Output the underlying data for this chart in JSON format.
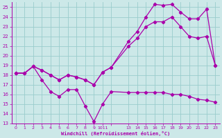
{
  "xlabel": "Windchill (Refroidissement éolien,°C)",
  "bg_color": "#cce8e8",
  "grid_color": "#99cccc",
  "line_color": "#aa00aa",
  "xlim": [
    -0.5,
    23.5
  ],
  "ylim": [
    13,
    25.5
  ],
  "yticks": [
    13,
    14,
    15,
    16,
    17,
    18,
    19,
    20,
    21,
    22,
    23,
    24,
    25
  ],
  "xtick_positions": [
    0,
    1,
    2,
    3,
    4,
    5,
    6,
    7,
    8,
    9,
    10,
    11,
    13,
    14,
    15,
    16,
    17,
    18,
    19,
    20,
    21,
    22,
    23
  ],
  "xtick_labels": [
    "0",
    "1",
    "2",
    "3",
    "4",
    "5",
    "6",
    "7",
    "8",
    "9",
    "1011",
    "",
    "13",
    "14",
    "15",
    "16",
    "17",
    "18",
    "19",
    "20",
    "21",
    "22",
    "23"
  ],
  "line1_x": [
    0,
    1,
    2,
    3,
    4,
    5,
    6,
    7,
    8,
    9,
    10,
    11,
    13,
    14,
    15,
    16,
    17,
    18,
    19,
    20,
    21,
    22,
    23
  ],
  "line1_y": [
    18.2,
    18.2,
    18.9,
    17.5,
    16.3,
    15.8,
    16.5,
    16.5,
    14.8,
    13.2,
    15.0,
    16.3,
    16.2,
    16.2,
    16.2,
    16.2,
    16.2,
    16.0,
    16.0,
    15.8,
    15.5,
    15.4,
    15.2
  ],
  "line2_x": [
    0,
    1,
    2,
    3,
    4,
    5,
    6,
    7,
    8,
    9,
    10,
    11,
    13,
    14,
    15,
    16,
    17,
    18,
    19,
    20,
    21,
    22,
    23
  ],
  "line2_y": [
    18.2,
    18.2,
    18.9,
    18.5,
    18.0,
    17.5,
    18.0,
    17.8,
    17.5,
    17.0,
    18.3,
    18.8,
    21.0,
    21.8,
    23.0,
    23.5,
    23.5,
    24.0,
    23.0,
    22.0,
    21.8,
    22.0,
    19.0
  ],
  "line3_x": [
    0,
    1,
    2,
    3,
    4,
    5,
    6,
    7,
    8,
    9,
    10,
    11,
    13,
    14,
    15,
    16,
    17,
    18,
    19,
    20,
    21,
    22,
    23
  ],
  "line3_y": [
    18.2,
    18.2,
    18.9,
    18.5,
    18.0,
    17.5,
    18.0,
    17.8,
    17.5,
    17.0,
    18.3,
    18.8,
    21.5,
    22.5,
    24.0,
    25.3,
    25.2,
    25.3,
    24.5,
    23.8,
    23.8,
    24.8,
    19.0
  ]
}
